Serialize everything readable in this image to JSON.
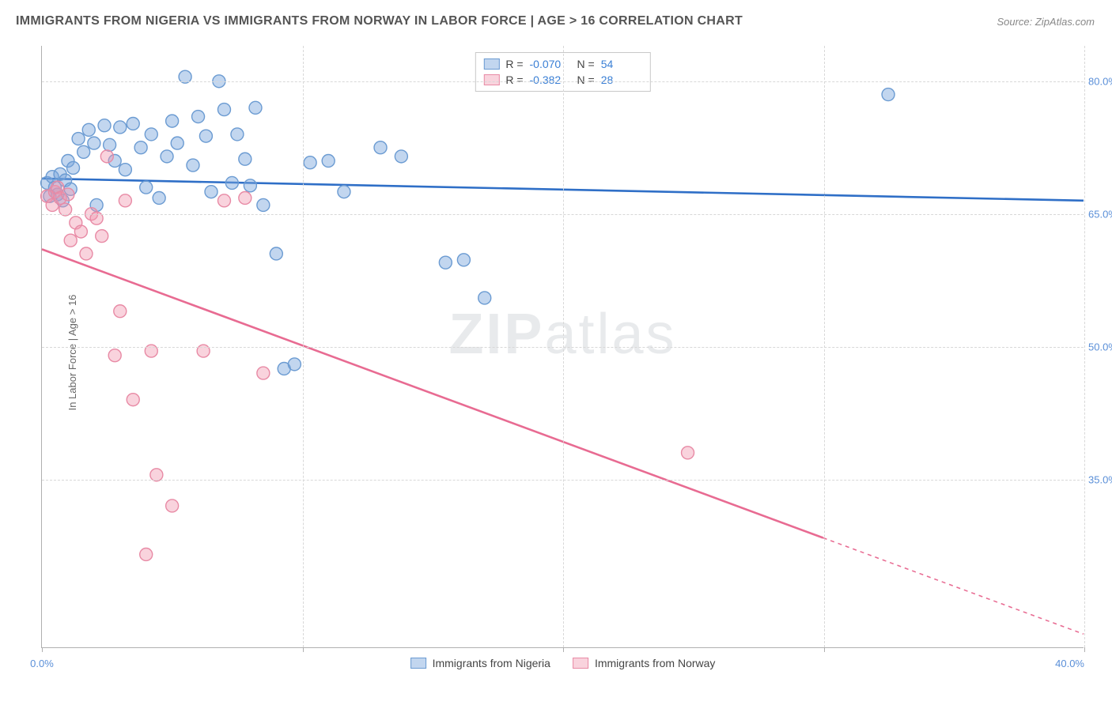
{
  "title": "IMMIGRANTS FROM NIGERIA VS IMMIGRANTS FROM NORWAY IN LABOR FORCE | AGE > 16 CORRELATION CHART",
  "source": "Source: ZipAtlas.com",
  "y_axis_label": "In Labor Force | Age > 16",
  "watermark_bold": "ZIP",
  "watermark_light": "atlas",
  "chart": {
    "type": "scatter",
    "xlim": [
      0,
      40
    ],
    "ylim": [
      16,
      84
    ],
    "x_ticks": [
      0,
      10,
      20,
      30,
      40
    ],
    "x_tick_labels_shown": {
      "0": "0.0%",
      "40": "40.0%"
    },
    "y_ticks": [
      35,
      50,
      65,
      80
    ],
    "y_tick_labels": {
      "35": "35.0%",
      "50": "50.0%",
      "65": "65.0%",
      "80": "80.0%"
    },
    "grid_color": "#d8d8d8",
    "background_color": "#ffffff",
    "marker_radius": 8,
    "marker_stroke_width": 1.4,
    "trend_line_width": 2.6,
    "series": [
      {
        "name": "Immigrants from Nigeria",
        "color_fill": "rgba(120,165,220,0.45)",
        "color_stroke": "#6b9bd2",
        "line_color": "#2f6fc7",
        "R": "-0.070",
        "N": "54",
        "trend": {
          "x1": 0,
          "y1": 69.0,
          "x2": 40,
          "y2": 66.5,
          "dash_from_x": null
        },
        "points": [
          [
            0.2,
            68.5
          ],
          [
            0.3,
            67.0
          ],
          [
            0.4,
            69.2
          ],
          [
            0.5,
            68.0
          ],
          [
            0.6,
            67.2
          ],
          [
            0.7,
            69.5
          ],
          [
            0.8,
            66.5
          ],
          [
            0.9,
            68.8
          ],
          [
            1.0,
            71.0
          ],
          [
            1.1,
            67.8
          ],
          [
            1.2,
            70.2
          ],
          [
            1.4,
            73.5
          ],
          [
            1.6,
            72.0
          ],
          [
            1.8,
            74.5
          ],
          [
            2.0,
            73.0
          ],
          [
            2.1,
            66.0
          ],
          [
            2.4,
            75.0
          ],
          [
            2.6,
            72.8
          ],
          [
            2.8,
            71.0
          ],
          [
            3.0,
            74.8
          ],
          [
            3.2,
            70.0
          ],
          [
            3.5,
            75.2
          ],
          [
            3.8,
            72.5
          ],
          [
            4.0,
            68.0
          ],
          [
            4.2,
            74.0
          ],
          [
            4.5,
            66.8
          ],
          [
            4.8,
            71.5
          ],
          [
            5.0,
            75.5
          ],
          [
            5.2,
            73.0
          ],
          [
            5.5,
            80.5
          ],
          [
            5.8,
            70.5
          ],
          [
            6.0,
            76.0
          ],
          [
            6.3,
            73.8
          ],
          [
            6.5,
            67.5
          ],
          [
            6.8,
            80.0
          ],
          [
            7.0,
            76.8
          ],
          [
            7.3,
            68.5
          ],
          [
            7.5,
            74.0
          ],
          [
            7.8,
            71.2
          ],
          [
            8.2,
            77.0
          ],
          [
            8.5,
            66.0
          ],
          [
            9.0,
            60.5
          ],
          [
            9.3,
            47.5
          ],
          [
            9.7,
            48.0
          ],
          [
            10.3,
            70.8
          ],
          [
            11.0,
            71.0
          ],
          [
            11.6,
            67.5
          ],
          [
            13.0,
            72.5
          ],
          [
            13.8,
            71.5
          ],
          [
            15.5,
            59.5
          ],
          [
            16.2,
            59.8
          ],
          [
            17.0,
            55.5
          ],
          [
            32.5,
            78.5
          ],
          [
            8.0,
            68.2
          ]
        ]
      },
      {
        "name": "Immigrants from Norway",
        "color_fill": "rgba(240,150,175,0.42)",
        "color_stroke": "#e88aa5",
        "line_color": "#e86b92",
        "R": "-0.382",
        "N": "28",
        "trend": {
          "x1": 0,
          "y1": 61.0,
          "x2": 40,
          "y2": 17.5,
          "dash_from_x": 30
        },
        "points": [
          [
            0.2,
            67.0
          ],
          [
            0.4,
            66.0
          ],
          [
            0.5,
            67.5
          ],
          [
            0.6,
            68.0
          ],
          [
            0.7,
            66.8
          ],
          [
            0.9,
            65.5
          ],
          [
            1.0,
            67.2
          ],
          [
            1.1,
            62.0
          ],
          [
            1.3,
            64.0
          ],
          [
            1.5,
            63.0
          ],
          [
            1.7,
            60.5
          ],
          [
            1.9,
            65.0
          ],
          [
            2.1,
            64.5
          ],
          [
            2.3,
            62.5
          ],
          [
            2.5,
            71.5
          ],
          [
            2.8,
            49.0
          ],
          [
            3.0,
            54.0
          ],
          [
            3.2,
            66.5
          ],
          [
            3.5,
            44.0
          ],
          [
            4.0,
            26.5
          ],
          [
            4.2,
            49.5
          ],
          [
            4.4,
            35.5
          ],
          [
            5.0,
            32.0
          ],
          [
            6.2,
            49.5
          ],
          [
            7.0,
            66.5
          ],
          [
            7.8,
            66.8
          ],
          [
            8.5,
            47.0
          ],
          [
            24.8,
            38.0
          ]
        ]
      }
    ]
  },
  "legend_bottom": [
    {
      "label": "Immigrants from Nigeria",
      "fill": "rgba(120,165,220,0.45)",
      "stroke": "#6b9bd2"
    },
    {
      "label": "Immigrants from Norway",
      "fill": "rgba(240,150,175,0.42)",
      "stroke": "#e88aa5"
    }
  ]
}
